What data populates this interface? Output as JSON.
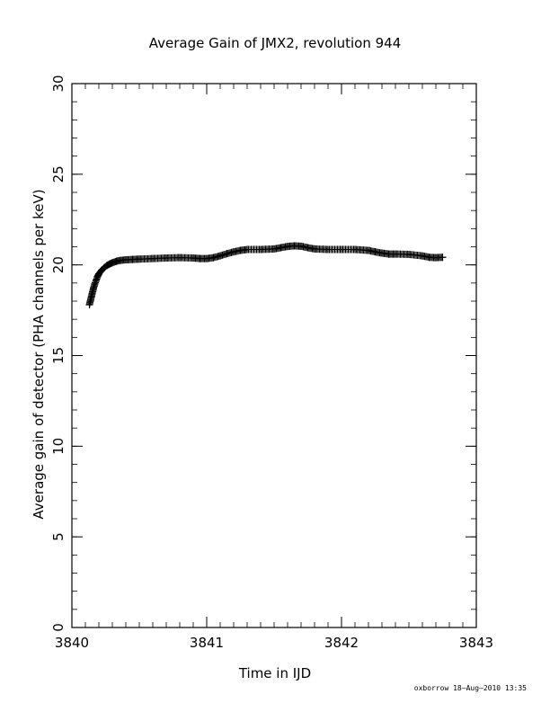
{
  "chart_data": {
    "type": "scatter",
    "title": "Average Gain of JMX2, revolution 944",
    "xlabel": "Time in IJD",
    "ylabel": "Average gain of detector (PHA channels per keV)",
    "xlim": [
      3840,
      3843
    ],
    "ylim": [
      0,
      30
    ],
    "x_ticks": [
      3840,
      3841,
      3842,
      3843
    ],
    "y_ticks": [
      0,
      5,
      10,
      15,
      20,
      25,
      30
    ],
    "grid": false,
    "marker": "plus",
    "series": [
      {
        "x": [
          3840.13,
          3840.14,
          3840.15,
          3840.16,
          3840.17,
          3840.18,
          3840.19,
          3840.2,
          3840.22,
          3840.24,
          3840.26,
          3840.28,
          3840.3,
          3840.33,
          3840.36,
          3840.4,
          3840.45,
          3840.5,
          3840.6,
          3840.7,
          3840.8,
          3840.9,
          3840.95,
          3841.0,
          3841.05,
          3841.1,
          3841.15,
          3841.2,
          3841.25,
          3841.3,
          3841.4,
          3841.5,
          3841.55,
          3841.6,
          3841.65,
          3841.7,
          3841.75,
          3841.8,
          3841.9,
          3842.0,
          3842.1,
          3842.2,
          3842.25,
          3842.3,
          3842.35,
          3842.4,
          3842.5,
          3842.6,
          3842.65,
          3842.7,
          3842.75
        ],
        "y": [
          17.8,
          18.1,
          18.4,
          18.7,
          18.95,
          19.15,
          19.35,
          19.5,
          19.7,
          19.85,
          19.97,
          20.05,
          20.12,
          20.2,
          20.25,
          20.28,
          20.3,
          20.32,
          20.35,
          20.38,
          20.4,
          20.38,
          20.35,
          20.35,
          20.4,
          20.5,
          20.62,
          20.72,
          20.8,
          20.85,
          20.85,
          20.88,
          20.95,
          21.02,
          21.05,
          21.03,
          20.95,
          20.88,
          20.85,
          20.85,
          20.85,
          20.8,
          20.72,
          20.65,
          20.6,
          20.6,
          20.58,
          20.5,
          20.42,
          20.4,
          20.42
        ]
      }
    ]
  },
  "footer": {
    "stamp": "oxborrow 18–Aug–2010 13:35"
  }
}
